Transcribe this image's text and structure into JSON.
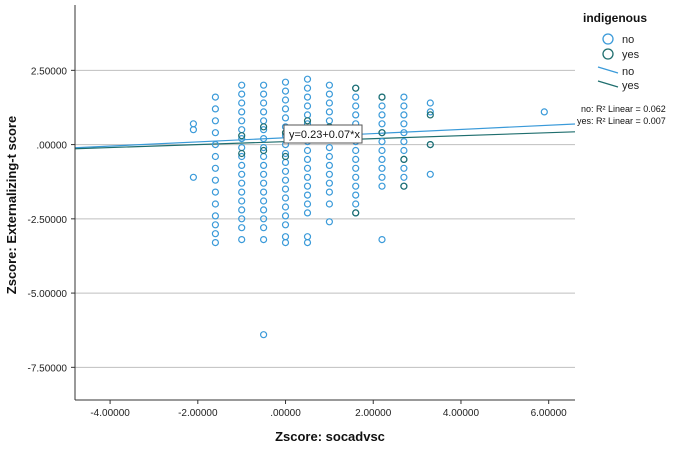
{
  "chart_data": {
    "type": "scatter",
    "xlabel": "Zscore:  socadvsc",
    "ylabel": "Zscore:  Externalizing-t score",
    "xlim": [
      -4.8,
      6.6
    ],
    "ylim": [
      -8.6,
      4.7
    ],
    "x_ticks": [
      {
        "value": -4,
        "label": "-4.00000"
      },
      {
        "value": -2,
        "label": "-2.00000"
      },
      {
        "value": 0,
        "label": ".00000"
      },
      {
        "value": 2,
        "label": "2.00000"
      },
      {
        "value": 4,
        "label": "4.00000"
      },
      {
        "value": 6,
        "label": "6.00000"
      }
    ],
    "y_ticks": [
      {
        "value": 2.5,
        "label": "2.50000"
      },
      {
        "value": 0,
        "label": ".00000"
      },
      {
        "value": -2.5,
        "label": "-2.50000"
      },
      {
        "value": -5,
        "label": "-5.00000"
      },
      {
        "value": -7.5,
        "label": "-7.50000"
      }
    ],
    "gridlines": "horizontal",
    "legend": {
      "title": "indigenous",
      "position": "top-right",
      "entries": [
        {
          "label": "no",
          "kind": "marker",
          "color": "#3a9ad9"
        },
        {
          "label": "yes",
          "kind": "marker",
          "color": "#1f6e6e"
        },
        {
          "label": "no",
          "kind": "line",
          "color": "#3a9ad9"
        },
        {
          "label": "yes",
          "kind": "line",
          "color": "#1f6e6e"
        }
      ]
    },
    "fit_lines": [
      {
        "name": "no",
        "intercept": 0.23,
        "slope": 0.07,
        "color": "#3a9ad9",
        "r2_label": "no: R² Linear = 0.062"
      },
      {
        "name": "yes",
        "intercept": 0.1,
        "slope": 0.05,
        "color": "#1f6e6e",
        "r2_label": "yes: R² Linear = 0.007"
      }
    ],
    "fit_equation": "y=0.23+0.07*x",
    "x_columns": [
      -2.0,
      -1.0,
      -0.5,
      0.0,
      0.5,
      1.0,
      1.5,
      2.2,
      2.7
    ],
    "series": [
      {
        "name": "no",
        "color": "#3a9ad9",
        "points": [
          [
            -2.1,
            0.7
          ],
          [
            -2.1,
            0.5
          ],
          [
            -2.1,
            -1.1
          ],
          [
            -1.6,
            1.6
          ],
          [
            -1.6,
            1.2
          ],
          [
            -1.6,
            0.8
          ],
          [
            -1.6,
            0.4
          ],
          [
            -1.6,
            0.0
          ],
          [
            -1.6,
            -0.4
          ],
          [
            -1.6,
            -0.8
          ],
          [
            -1.6,
            -1.2
          ],
          [
            -1.6,
            -1.6
          ],
          [
            -1.6,
            -2.0
          ],
          [
            -1.6,
            -2.4
          ],
          [
            -1.6,
            -2.7
          ],
          [
            -1.6,
            -3.0
          ],
          [
            -1.6,
            -3.3
          ],
          [
            -1.0,
            2.0
          ],
          [
            -1.0,
            1.7
          ],
          [
            -1.0,
            1.4
          ],
          [
            -1.0,
            1.1
          ],
          [
            -1.0,
            0.8
          ],
          [
            -1.0,
            0.5
          ],
          [
            -1.0,
            0.2
          ],
          [
            -1.0,
            -0.1
          ],
          [
            -1.0,
            -0.4
          ],
          [
            -1.0,
            -0.7
          ],
          [
            -1.0,
            -1.0
          ],
          [
            -1.0,
            -1.3
          ],
          [
            -1.0,
            -1.6
          ],
          [
            -1.0,
            -1.9
          ],
          [
            -1.0,
            -2.2
          ],
          [
            -1.0,
            -2.5
          ],
          [
            -1.0,
            -2.8
          ],
          [
            -1.0,
            -3.2
          ],
          [
            -0.5,
            2.0
          ],
          [
            -0.5,
            1.7
          ],
          [
            -0.5,
            1.4
          ],
          [
            -0.5,
            1.1
          ],
          [
            -0.5,
            0.8
          ],
          [
            -0.5,
            0.5
          ],
          [
            -0.5,
            0.2
          ],
          [
            -0.5,
            -0.1
          ],
          [
            -0.5,
            -0.4
          ],
          [
            -0.5,
            -0.7
          ],
          [
            -0.5,
            -1.0
          ],
          [
            -0.5,
            -1.3
          ],
          [
            -0.5,
            -1.6
          ],
          [
            -0.5,
            -1.9
          ],
          [
            -0.5,
            -2.2
          ],
          [
            -0.5,
            -2.5
          ],
          [
            -0.5,
            -2.8
          ],
          [
            -0.5,
            -3.2
          ],
          [
            -0.5,
            -6.4
          ],
          [
            0.0,
            2.1
          ],
          [
            0.0,
            1.8
          ],
          [
            0.0,
            1.5
          ],
          [
            0.0,
            1.2
          ],
          [
            0.0,
            0.9
          ],
          [
            0.0,
            0.6
          ],
          [
            0.0,
            0.3
          ],
          [
            0.0,
            0.0
          ],
          [
            0.0,
            -0.3
          ],
          [
            0.0,
            -0.6
          ],
          [
            0.0,
            -0.9
          ],
          [
            0.0,
            -1.2
          ],
          [
            0.0,
            -1.5
          ],
          [
            0.0,
            -1.8
          ],
          [
            0.0,
            -2.1
          ],
          [
            0.0,
            -2.4
          ],
          [
            0.0,
            -2.7
          ],
          [
            0.0,
            -3.1
          ],
          [
            0.0,
            -3.3
          ],
          [
            0.5,
            2.2
          ],
          [
            0.5,
            1.9
          ],
          [
            0.5,
            1.6
          ],
          [
            0.5,
            1.3
          ],
          [
            0.5,
            1.0
          ],
          [
            0.5,
            0.7
          ],
          [
            0.5,
            0.4
          ],
          [
            0.5,
            0.1
          ],
          [
            0.5,
            -0.2
          ],
          [
            0.5,
            -0.5
          ],
          [
            0.5,
            -0.8
          ],
          [
            0.5,
            -1.1
          ],
          [
            0.5,
            -1.4
          ],
          [
            0.5,
            -1.7
          ],
          [
            0.5,
            -2.0
          ],
          [
            0.5,
            -2.3
          ],
          [
            0.5,
            -3.1
          ],
          [
            0.5,
            -3.3
          ],
          [
            1.0,
            2.0
          ],
          [
            1.0,
            1.7
          ],
          [
            1.0,
            1.4
          ],
          [
            1.0,
            1.1
          ],
          [
            1.0,
            0.8
          ],
          [
            1.0,
            0.5
          ],
          [
            1.0,
            0.2
          ],
          [
            1.0,
            -0.1
          ],
          [
            1.0,
            -0.4
          ],
          [
            1.0,
            -0.7
          ],
          [
            1.0,
            -1.0
          ],
          [
            1.0,
            -1.3
          ],
          [
            1.0,
            -1.6
          ],
          [
            1.0,
            -2.0
          ],
          [
            1.0,
            -2.6
          ],
          [
            1.6,
            1.9
          ],
          [
            1.6,
            1.6
          ],
          [
            1.6,
            1.3
          ],
          [
            1.6,
            1.0
          ],
          [
            1.6,
            0.7
          ],
          [
            1.6,
            0.4
          ],
          [
            1.6,
            0.1
          ],
          [
            1.6,
            -0.2
          ],
          [
            1.6,
            -0.5
          ],
          [
            1.6,
            -0.8
          ],
          [
            1.6,
            -1.1
          ],
          [
            1.6,
            -1.4
          ],
          [
            1.6,
            -1.7
          ],
          [
            1.6,
            -2.0
          ],
          [
            1.6,
            -2.3
          ],
          [
            2.2,
            1.6
          ],
          [
            2.2,
            1.3
          ],
          [
            2.2,
            1.0
          ],
          [
            2.2,
            0.7
          ],
          [
            2.2,
            0.4
          ],
          [
            2.2,
            0.1
          ],
          [
            2.2,
            -0.2
          ],
          [
            2.2,
            -0.5
          ],
          [
            2.2,
            -0.8
          ],
          [
            2.2,
            -1.1
          ],
          [
            2.2,
            -1.4
          ],
          [
            2.2,
            -3.2
          ],
          [
            2.7,
            1.6
          ],
          [
            2.7,
            1.3
          ],
          [
            2.7,
            1.0
          ],
          [
            2.7,
            0.7
          ],
          [
            2.7,
            0.4
          ],
          [
            2.7,
            0.1
          ],
          [
            2.7,
            -0.2
          ],
          [
            2.7,
            -0.5
          ],
          [
            2.7,
            -0.8
          ],
          [
            2.7,
            -1.1
          ],
          [
            2.7,
            -1.4
          ],
          [
            3.3,
            1.4
          ],
          [
            3.3,
            1.1
          ],
          [
            3.3,
            0.0
          ],
          [
            3.3,
            -1.0
          ],
          [
            5.9,
            1.1
          ]
        ]
      },
      {
        "name": "yes",
        "color": "#1f6e6e",
        "points": [
          [
            -1.0,
            0.3
          ],
          [
            -1.0,
            -0.3
          ],
          [
            -0.5,
            0.6
          ],
          [
            -0.5,
            -0.2
          ],
          [
            0.0,
            0.4
          ],
          [
            0.0,
            -0.4
          ],
          [
            0.5,
            0.8
          ],
          [
            0.5,
            0.2
          ],
          [
            1.0,
            0.6
          ],
          [
            1.6,
            1.9
          ],
          [
            1.6,
            0.5
          ],
          [
            1.6,
            -2.3
          ],
          [
            2.2,
            1.6
          ],
          [
            2.2,
            0.4
          ],
          [
            2.7,
            -0.5
          ],
          [
            2.7,
            -1.4
          ],
          [
            3.3,
            1.0
          ],
          [
            3.3,
            0.0
          ]
        ]
      }
    ]
  }
}
